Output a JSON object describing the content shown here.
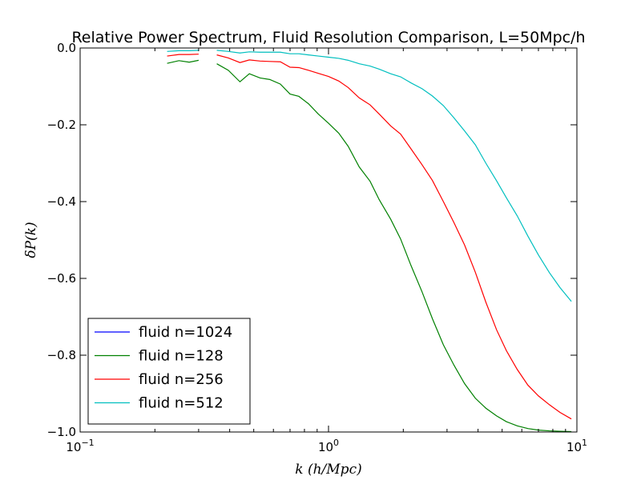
{
  "chart_data": {
    "type": "line",
    "title": "Relative Power Spectrum, Fluid Resolution Comparison, L=50Mpc/h",
    "xlabel": "k (h/Mpc)",
    "ylabel": "δP(k)",
    "xscale": "log",
    "xlim": [
      0.1,
      10
    ],
    "ylim": [
      -1.0,
      0.0
    ],
    "x_ticks": [
      {
        "value": 0.1,
        "base": "10",
        "exp": "−1"
      },
      {
        "value": 1,
        "base": "10",
        "exp": "0"
      },
      {
        "value": 10,
        "base": "10",
        "exp": "1"
      }
    ],
    "y_ticks": [
      {
        "value": 0.0,
        "label": "0.0"
      },
      {
        "value": -0.2,
        "label": "−0.2"
      },
      {
        "value": -0.4,
        "label": "−0.4"
      },
      {
        "value": -0.6,
        "label": "−0.6"
      },
      {
        "value": -0.8,
        "label": "−0.8"
      },
      {
        "value": -1.0,
        "label": "−1.0"
      }
    ],
    "grid": false,
    "legend_position": "lower-left",
    "series": [
      {
        "name": "fluid n=1024",
        "color": "#0000ff",
        "points": []
      },
      {
        "name": "fluid n=128",
        "color": "#008000",
        "points": [
          [
            0.224,
            -0.04
          ],
          [
            0.25,
            -0.033
          ],
          [
            0.275,
            -0.037
          ],
          [
            0.3,
            -0.032
          ],
          [
            null,
            null
          ],
          [
            0.355,
            -0.041
          ],
          [
            0.395,
            -0.058
          ],
          [
            0.44,
            -0.088
          ],
          [
            0.48,
            -0.067
          ],
          [
            0.53,
            -0.078
          ],
          [
            0.58,
            -0.082
          ],
          [
            0.64,
            -0.094
          ],
          [
            0.7,
            -0.12
          ],
          [
            0.76,
            -0.126
          ],
          [
            0.83,
            -0.145
          ],
          [
            0.91,
            -0.172
          ],
          [
            1.0,
            -0.196
          ],
          [
            1.1,
            -0.222
          ],
          [
            1.2,
            -0.256
          ],
          [
            1.33,
            -0.31
          ],
          [
            1.47,
            -0.347
          ],
          [
            1.6,
            -0.395
          ],
          [
            1.78,
            -0.446
          ],
          [
            1.95,
            -0.497
          ],
          [
            2.15,
            -0.567
          ],
          [
            2.38,
            -0.635
          ],
          [
            2.62,
            -0.705
          ],
          [
            2.9,
            -0.773
          ],
          [
            3.2,
            -0.826
          ],
          [
            3.53,
            -0.874
          ],
          [
            3.9,
            -0.912
          ],
          [
            4.3,
            -0.938
          ],
          [
            4.75,
            -0.958
          ],
          [
            5.2,
            -0.973
          ],
          [
            5.75,
            -0.984
          ],
          [
            6.35,
            -0.991
          ],
          [
            7.0,
            -0.995
          ],
          [
            7.75,
            -0.997
          ],
          [
            8.55,
            -0.998
          ],
          [
            9.5,
            -0.999
          ]
        ]
      },
      {
        "name": "fluid n=256",
        "color": "#ff0000",
        "points": [
          [
            0.224,
            -0.021
          ],
          [
            0.25,
            -0.017
          ],
          [
            0.275,
            -0.017
          ],
          [
            0.3,
            -0.016
          ],
          [
            null,
            null
          ],
          [
            0.355,
            -0.018
          ],
          [
            0.395,
            -0.026
          ],
          [
            0.44,
            -0.038
          ],
          [
            0.48,
            -0.031
          ],
          [
            0.53,
            -0.034
          ],
          [
            0.58,
            -0.035
          ],
          [
            0.64,
            -0.036
          ],
          [
            0.7,
            -0.05
          ],
          [
            0.76,
            -0.051
          ],
          [
            0.83,
            -0.058
          ],
          [
            0.91,
            -0.066
          ],
          [
            1.0,
            -0.074
          ],
          [
            1.1,
            -0.086
          ],
          [
            1.2,
            -0.103
          ],
          [
            1.33,
            -0.13
          ],
          [
            1.47,
            -0.148
          ],
          [
            1.6,
            -0.172
          ],
          [
            1.78,
            -0.203
          ],
          [
            1.95,
            -0.224
          ],
          [
            2.15,
            -0.263
          ],
          [
            2.38,
            -0.304
          ],
          [
            2.62,
            -0.345
          ],
          [
            2.9,
            -0.4
          ],
          [
            3.2,
            -0.455
          ],
          [
            3.53,
            -0.513
          ],
          [
            3.9,
            -0.584
          ],
          [
            4.3,
            -0.662
          ],
          [
            4.75,
            -0.734
          ],
          [
            5.2,
            -0.788
          ],
          [
            5.75,
            -0.837
          ],
          [
            6.35,
            -0.878
          ],
          [
            7.0,
            -0.906
          ],
          [
            7.75,
            -0.929
          ],
          [
            8.55,
            -0.949
          ],
          [
            9.5,
            -0.966
          ]
        ]
      },
      {
        "name": "fluid n=512",
        "color": "#00bfbf",
        "points": [
          [
            0.224,
            -0.009
          ],
          [
            0.25,
            -0.007
          ],
          [
            0.275,
            -0.007
          ],
          [
            0.3,
            -0.006
          ],
          [
            null,
            null
          ],
          [
            0.355,
            -0.006
          ],
          [
            0.395,
            -0.009
          ],
          [
            0.44,
            -0.013
          ],
          [
            0.48,
            -0.01
          ],
          [
            0.53,
            -0.011
          ],
          [
            0.58,
            -0.011
          ],
          [
            0.64,
            -0.011
          ],
          [
            0.7,
            -0.015
          ],
          [
            0.76,
            -0.015
          ],
          [
            0.83,
            -0.018
          ],
          [
            0.91,
            -0.021
          ],
          [
            1.0,
            -0.024
          ],
          [
            1.1,
            -0.027
          ],
          [
            1.2,
            -0.032
          ],
          [
            1.33,
            -0.041
          ],
          [
            1.47,
            -0.047
          ],
          [
            1.6,
            -0.055
          ],
          [
            1.78,
            -0.067
          ],
          [
            1.95,
            -0.075
          ],
          [
            2.15,
            -0.091
          ],
          [
            2.38,
            -0.106
          ],
          [
            2.62,
            -0.125
          ],
          [
            2.9,
            -0.15
          ],
          [
            3.2,
            -0.182
          ],
          [
            3.53,
            -0.216
          ],
          [
            3.9,
            -0.252
          ],
          [
            4.3,
            -0.3
          ],
          [
            4.75,
            -0.346
          ],
          [
            5.2,
            -0.39
          ],
          [
            5.75,
            -0.437
          ],
          [
            6.35,
            -0.49
          ],
          [
            7.0,
            -0.539
          ],
          [
            7.75,
            -0.585
          ],
          [
            8.55,
            -0.624
          ],
          [
            9.5,
            -0.66
          ]
        ]
      }
    ]
  }
}
